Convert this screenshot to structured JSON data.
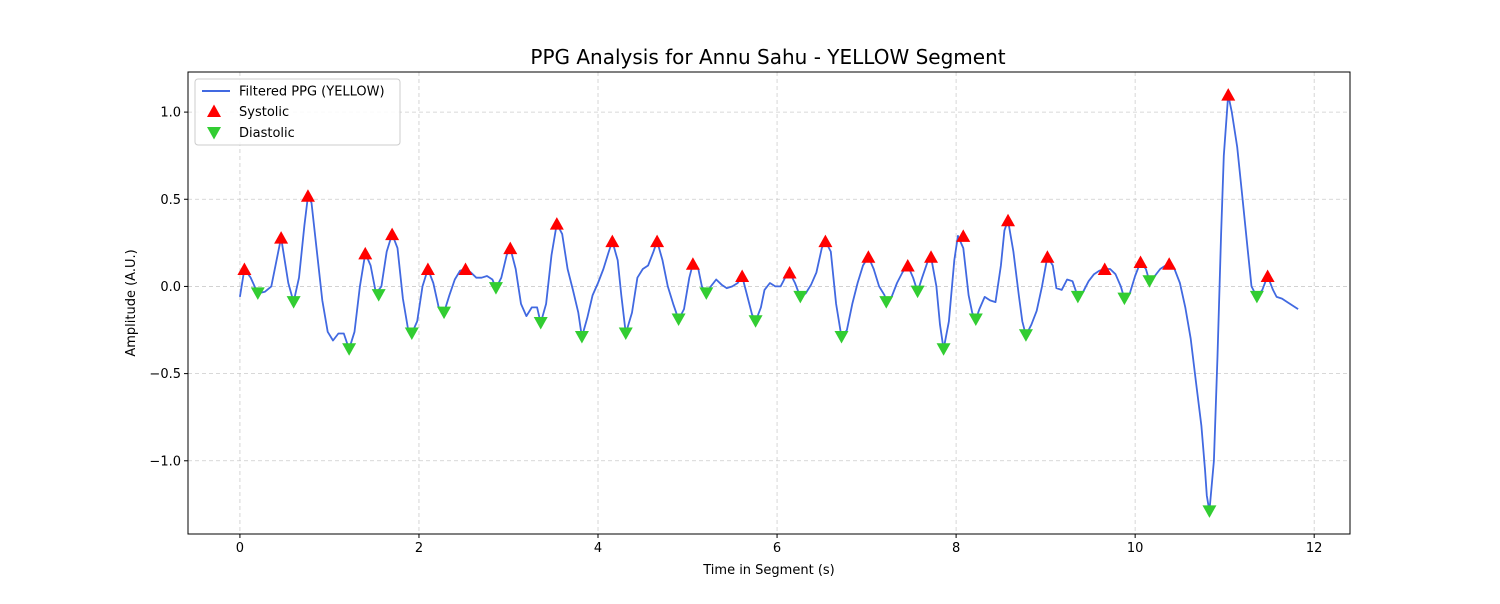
{
  "chart_data": {
    "type": "line",
    "title": "PPG Analysis for Annu Sahu - YELLOW Segment",
    "xlabel": "Time in Segment (s)",
    "ylabel": "Amplitude (A.U.)",
    "xlim": [
      -0.58,
      12.4
    ],
    "ylim": [
      -1.42,
      1.23
    ],
    "x_ticks": [
      0,
      2,
      4,
      6,
      8,
      10,
      12
    ],
    "x_tick_labels": [
      "0",
      "2",
      "4",
      "6",
      "8",
      "10",
      "12"
    ],
    "y_ticks": [
      -1.0,
      -0.5,
      0.0,
      0.5,
      1.0
    ],
    "y_tick_labels": [
      "−1.0",
      "−0.5",
      "0.0",
      "0.5",
      "1.0"
    ],
    "grid": true,
    "legend_position": "top-left",
    "colors": {
      "line": "#4169e1",
      "systolic": "#ff0000",
      "diastolic": "#32cd32",
      "grid": "#cccccc"
    },
    "series": [
      {
        "name": "Filtered PPG (YELLOW)",
        "kind": "line",
        "points": [
          [
            0.0,
            -0.06
          ],
          [
            0.05,
            0.1
          ],
          [
            0.12,
            0.05
          ],
          [
            0.2,
            -0.04
          ],
          [
            0.28,
            -0.03
          ],
          [
            0.35,
            0.0
          ],
          [
            0.46,
            0.28
          ],
          [
            0.54,
            0.02
          ],
          [
            0.6,
            -0.09
          ],
          [
            0.66,
            0.05
          ],
          [
            0.72,
            0.35
          ],
          [
            0.76,
            0.52
          ],
          [
            0.8,
            0.48
          ],
          [
            0.86,
            0.2
          ],
          [
            0.92,
            -0.08
          ],
          [
            0.98,
            -0.26
          ],
          [
            1.04,
            -0.31
          ],
          [
            1.1,
            -0.27
          ],
          [
            1.16,
            -0.27
          ],
          [
            1.22,
            -0.36
          ],
          [
            1.28,
            -0.26
          ],
          [
            1.34,
            0.0
          ],
          [
            1.4,
            0.19
          ],
          [
            1.46,
            0.12
          ],
          [
            1.52,
            -0.04
          ],
          [
            1.58,
            0.0
          ],
          [
            1.64,
            0.2
          ],
          [
            1.7,
            0.3
          ],
          [
            1.76,
            0.22
          ],
          [
            1.82,
            -0.07
          ],
          [
            1.88,
            -0.25
          ],
          [
            1.92,
            -0.27
          ],
          [
            1.98,
            -0.2
          ],
          [
            2.04,
            0.0
          ],
          [
            2.1,
            0.1
          ],
          [
            2.16,
            0.02
          ],
          [
            2.22,
            -0.12
          ],
          [
            2.28,
            -0.15
          ],
          [
            2.34,
            -0.05
          ],
          [
            2.4,
            0.04
          ],
          [
            2.46,
            0.09
          ],
          [
            2.52,
            0.1
          ],
          [
            2.58,
            0.08
          ],
          [
            2.64,
            0.05
          ],
          [
            2.7,
            0.05
          ],
          [
            2.76,
            0.06
          ],
          [
            2.82,
            0.04
          ],
          [
            2.86,
            -0.01
          ],
          [
            2.92,
            0.05
          ],
          [
            2.98,
            0.18
          ],
          [
            3.02,
            0.22
          ],
          [
            3.08,
            0.1
          ],
          [
            3.14,
            -0.1
          ],
          [
            3.2,
            -0.17
          ],
          [
            3.26,
            -0.12
          ],
          [
            3.32,
            -0.12
          ],
          [
            3.36,
            -0.21
          ],
          [
            3.42,
            -0.1
          ],
          [
            3.48,
            0.18
          ],
          [
            3.54,
            0.36
          ],
          [
            3.6,
            0.3
          ],
          [
            3.66,
            0.1
          ],
          [
            3.72,
            -0.02
          ],
          [
            3.78,
            -0.15
          ],
          [
            3.82,
            -0.29
          ],
          [
            3.88,
            -0.18
          ],
          [
            3.94,
            -0.05
          ],
          [
            4.0,
            0.02
          ],
          [
            4.06,
            0.1
          ],
          [
            4.12,
            0.2
          ],
          [
            4.16,
            0.26
          ],
          [
            4.22,
            0.15
          ],
          [
            4.26,
            -0.05
          ],
          [
            4.31,
            -0.27
          ],
          [
            4.38,
            -0.15
          ],
          [
            4.44,
            0.05
          ],
          [
            4.5,
            0.1
          ],
          [
            4.56,
            0.12
          ],
          [
            4.62,
            0.2
          ],
          [
            4.66,
            0.26
          ],
          [
            4.72,
            0.15
          ],
          [
            4.78,
            0.0
          ],
          [
            4.84,
            -0.1
          ],
          [
            4.9,
            -0.19
          ],
          [
            4.96,
            -0.13
          ],
          [
            5.02,
            0.05
          ],
          [
            5.06,
            0.13
          ],
          [
            5.12,
            0.1
          ],
          [
            5.16,
            0.0
          ],
          [
            5.21,
            -0.04
          ],
          [
            5.26,
            0.0
          ],
          [
            5.32,
            0.04
          ],
          [
            5.38,
            0.01
          ],
          [
            5.44,
            -0.01
          ],
          [
            5.5,
            0.0
          ],
          [
            5.56,
            0.02
          ],
          [
            5.61,
            0.06
          ],
          [
            5.66,
            -0.04
          ],
          [
            5.72,
            -0.16
          ],
          [
            5.76,
            -0.2
          ],
          [
            5.82,
            -0.12
          ],
          [
            5.86,
            -0.02
          ],
          [
            5.92,
            0.02
          ],
          [
            5.98,
            0.0
          ],
          [
            6.04,
            0.0
          ],
          [
            6.1,
            0.06
          ],
          [
            6.14,
            0.08
          ],
          [
            6.2,
            0.02
          ],
          [
            6.26,
            -0.06
          ],
          [
            6.32,
            -0.04
          ],
          [
            6.38,
            0.01
          ],
          [
            6.44,
            0.08
          ],
          [
            6.5,
            0.22
          ],
          [
            6.54,
            0.26
          ],
          [
            6.6,
            0.2
          ],
          [
            6.66,
            -0.1
          ],
          [
            6.72,
            -0.29
          ],
          [
            6.78,
            -0.25
          ],
          [
            6.84,
            -0.1
          ],
          [
            6.9,
            0.02
          ],
          [
            6.96,
            0.12
          ],
          [
            7.02,
            0.17
          ],
          [
            7.08,
            0.1
          ],
          [
            7.14,
            0.0
          ],
          [
            7.2,
            -0.05
          ],
          [
            7.22,
            -0.09
          ],
          [
            7.28,
            -0.06
          ],
          [
            7.34,
            0.02
          ],
          [
            7.4,
            0.08
          ],
          [
            7.46,
            0.12
          ],
          [
            7.52,
            0.05
          ],
          [
            7.57,
            -0.03
          ],
          [
            7.62,
            0.05
          ],
          [
            7.68,
            0.14
          ],
          [
            7.72,
            0.17
          ],
          [
            7.78,
            0.0
          ],
          [
            7.82,
            -0.22
          ],
          [
            7.86,
            -0.36
          ],
          [
            7.92,
            -0.2
          ],
          [
            7.98,
            0.15
          ],
          [
            8.02,
            0.29
          ],
          [
            8.08,
            0.22
          ],
          [
            8.14,
            -0.05
          ],
          [
            8.18,
            -0.15
          ],
          [
            8.22,
            -0.19
          ],
          [
            8.26,
            -0.13
          ],
          [
            8.32,
            -0.06
          ],
          [
            8.38,
            -0.08
          ],
          [
            8.44,
            -0.09
          ],
          [
            8.5,
            0.12
          ],
          [
            8.54,
            0.32
          ],
          [
            8.58,
            0.38
          ],
          [
            8.64,
            0.2
          ],
          [
            8.7,
            -0.05
          ],
          [
            8.74,
            -0.2
          ],
          [
            8.78,
            -0.28
          ],
          [
            8.84,
            -0.22
          ],
          [
            8.9,
            -0.14
          ],
          [
            8.96,
            0.0
          ],
          [
            9.02,
            0.17
          ],
          [
            9.08,
            0.12
          ],
          [
            9.12,
            -0.01
          ],
          [
            9.18,
            -0.02
          ],
          [
            9.24,
            0.04
          ],
          [
            9.3,
            0.03
          ],
          [
            9.36,
            -0.06
          ],
          [
            9.42,
            -0.03
          ],
          [
            9.48,
            0.03
          ],
          [
            9.54,
            0.07
          ],
          [
            9.6,
            0.09
          ],
          [
            9.66,
            0.1
          ],
          [
            9.72,
            0.1
          ],
          [
            9.78,
            0.07
          ],
          [
            9.84,
            0.0
          ],
          [
            9.88,
            -0.07
          ],
          [
            9.94,
            -0.04
          ],
          [
            10.0,
            0.06
          ],
          [
            10.06,
            0.14
          ],
          [
            10.12,
            0.1
          ],
          [
            10.16,
            0.03
          ],
          [
            10.22,
            0.06
          ],
          [
            10.28,
            0.1
          ],
          [
            10.34,
            0.12
          ],
          [
            10.38,
            0.13
          ],
          [
            10.44,
            0.1
          ],
          [
            10.5,
            0.02
          ],
          [
            10.56,
            -0.12
          ],
          [
            10.62,
            -0.3
          ],
          [
            10.68,
            -0.55
          ],
          [
            10.74,
            -0.8
          ],
          [
            10.78,
            -1.05
          ],
          [
            10.8,
            -1.2
          ],
          [
            10.83,
            -1.29
          ],
          [
            10.88,
            -1.0
          ],
          [
            10.92,
            -0.4
          ],
          [
            10.96,
            0.3
          ],
          [
            10.99,
            0.75
          ],
          [
            11.04,
            1.1
          ],
          [
            11.08,
            1.0
          ],
          [
            11.14,
            0.8
          ],
          [
            11.2,
            0.5
          ],
          [
            11.26,
            0.2
          ],
          [
            11.3,
            0.0
          ],
          [
            11.36,
            -0.06
          ],
          [
            11.42,
            -0.02
          ],
          [
            11.48,
            0.06
          ],
          [
            11.54,
            -0.02
          ],
          [
            11.58,
            -0.06
          ],
          [
            11.64,
            -0.07
          ],
          [
            11.7,
            -0.09
          ],
          [
            11.76,
            -0.11
          ],
          [
            11.82,
            -0.13
          ]
        ]
      },
      {
        "name": "Systolic",
        "kind": "marker-up",
        "points": [
          [
            0.05,
            0.1
          ],
          [
            0.46,
            0.28
          ],
          [
            0.76,
            0.52
          ],
          [
            1.4,
            0.19
          ],
          [
            1.7,
            0.3
          ],
          [
            2.1,
            0.1
          ],
          [
            2.52,
            0.1
          ],
          [
            3.02,
            0.22
          ],
          [
            3.54,
            0.36
          ],
          [
            4.16,
            0.26
          ],
          [
            4.66,
            0.26
          ],
          [
            5.06,
            0.13
          ],
          [
            5.61,
            0.06
          ],
          [
            6.14,
            0.08
          ],
          [
            6.54,
            0.26
          ],
          [
            7.02,
            0.17
          ],
          [
            7.46,
            0.12
          ],
          [
            7.72,
            0.17
          ],
          [
            8.08,
            0.29
          ],
          [
            8.58,
            0.38
          ],
          [
            9.02,
            0.17
          ],
          [
            9.66,
            0.1
          ],
          [
            10.06,
            0.14
          ],
          [
            10.38,
            0.13
          ],
          [
            11.04,
            1.1
          ],
          [
            11.48,
            0.06
          ]
        ]
      },
      {
        "name": "Diastolic",
        "kind": "marker-down",
        "points": [
          [
            0.2,
            -0.04
          ],
          [
            0.6,
            -0.09
          ],
          [
            1.22,
            -0.36
          ],
          [
            1.55,
            -0.05
          ],
          [
            1.92,
            -0.27
          ],
          [
            2.28,
            -0.15
          ],
          [
            2.86,
            -0.01
          ],
          [
            3.36,
            -0.21
          ],
          [
            3.82,
            -0.29
          ],
          [
            4.31,
            -0.27
          ],
          [
            4.9,
            -0.19
          ],
          [
            5.21,
            -0.04
          ],
          [
            5.76,
            -0.2
          ],
          [
            6.26,
            -0.06
          ],
          [
            6.72,
            -0.29
          ],
          [
            7.22,
            -0.09
          ],
          [
            7.57,
            -0.03
          ],
          [
            7.86,
            -0.36
          ],
          [
            8.22,
            -0.19
          ],
          [
            8.78,
            -0.28
          ],
          [
            9.36,
            -0.06
          ],
          [
            9.88,
            -0.07
          ],
          [
            10.16,
            0.03
          ],
          [
            10.83,
            -1.29
          ],
          [
            11.36,
            -0.06
          ]
        ]
      }
    ]
  }
}
